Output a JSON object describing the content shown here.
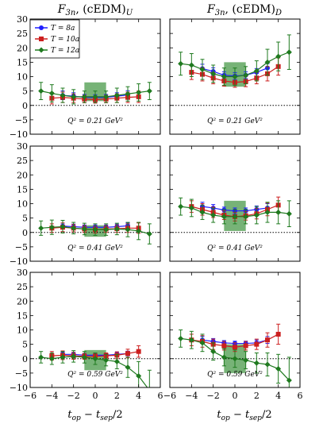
{
  "chart_data": {
    "type": "scatter",
    "column_titles": [
      "F3n, (cEDM)U",
      "F3n, (cEDM)D"
    ],
    "column_title_parts": [
      {
        "main": "F",
        "sub": "3n",
        "rest": ", (cEDM)",
        "sub2": "U"
      },
      {
        "main": "F",
        "sub": "3n",
        "rest": ", (cEDM)",
        "sub2": "D"
      }
    ],
    "xlabel": "t_op − t_sep/2",
    "xlabel_parts": {
      "a": "t",
      "a_sub": "op",
      "mid": " − t",
      "b_sub": "sep",
      "end": "/2"
    },
    "xlim": [
      -6,
      6
    ],
    "ylim": [
      -10,
      30
    ],
    "xticks": [
      "−6",
      "−4",
      "−2",
      "0",
      "2",
      "4",
      "6"
    ],
    "xtick_values": [
      -6,
      -4,
      -2,
      0,
      2,
      4,
      6
    ],
    "yticks": [
      "−10",
      "−5",
      "0",
      "5",
      "10",
      "15",
      "20",
      "25",
      "30"
    ],
    "ytick_values": [
      -10,
      -5,
      0,
      5,
      10,
      15,
      20,
      25,
      30
    ],
    "q2_labels": [
      "Q² = 0.21 GeV²",
      "Q² = 0.41 GeV²",
      "Q² = 0.59 GeV²"
    ],
    "legend": {
      "placement": "top-left",
      "entries": [
        "T = 8a",
        "T = 10a",
        "T = 12a"
      ]
    },
    "series_colors": [
      "#1f1fff",
      "#cc1f1f",
      "#1f7a1f"
    ],
    "band_color": "#2e8b2e",
    "panels": [
      {
        "row": 0,
        "col": 0,
        "band": {
          "x": [
            -1,
            1
          ],
          "y": [
            1.5,
            8.0
          ]
        },
        "series": [
          {
            "x": [
              -3,
              -2,
              -1,
              0,
              1,
              2,
              3
            ],
            "y": [
              3.5,
              3.2,
              2.8,
              2.7,
              2.8,
              3.2,
              3.6
            ],
            "err": [
              1.5,
              1.2,
              1.0,
              1.0,
              1.0,
              1.2,
              1.5
            ]
          },
          {
            "x": [
              -4,
              -3,
              -2,
              -1,
              0,
              1,
              2,
              3,
              4
            ],
            "y": [
              2.5,
              2.8,
              2.5,
              2.2,
              2.0,
              2.2,
              2.5,
              2.8,
              3.0
            ],
            "err": [
              2.0,
              1.8,
              1.5,
              1.3,
              1.2,
              1.3,
              1.5,
              1.8,
              2.0
            ]
          },
          {
            "x": [
              -5,
              -4,
              -3,
              -2,
              -1,
              0,
              1,
              2,
              3,
              4,
              5
            ],
            "y": [
              5.0,
              4.2,
              3.5,
              3.0,
              3.0,
              3.0,
              3.0,
              3.5,
              4.0,
              4.5,
              5.0
            ],
            "err": [
              3.0,
              3.0,
              2.5,
              2.5,
              2.0,
              2.0,
              2.0,
              2.5,
              2.5,
              3.0,
              3.0
            ]
          }
        ]
      },
      {
        "row": 0,
        "col": 1,
        "band": {
          "x": [
            -1,
            1
          ],
          "y": [
            6.5,
            15.0
          ]
        },
        "series": [
          {
            "x": [
              -3,
              -2,
              -1,
              0,
              1,
              2,
              3
            ],
            "y": [
              12.8,
              11.8,
              10.5,
              10.2,
              10.5,
              11.5,
              13.0
            ],
            "err": [
              1.5,
              1.3,
              1.2,
              1.2,
              1.2,
              1.3,
              1.5
            ]
          },
          {
            "x": [
              -4,
              -3,
              -2,
              -1,
              0,
              1,
              2,
              3,
              4
            ],
            "y": [
              11.5,
              10.8,
              9.5,
              8.5,
              8.0,
              8.3,
              9.5,
              11.0,
              13.5
            ],
            "err": [
              2.5,
              2.3,
              2.0,
              1.8,
              1.7,
              1.8,
              2.0,
              2.5,
              3.0
            ]
          },
          {
            "x": [
              -5,
              -4,
              -3,
              -2,
              -1,
              0,
              1,
              2,
              3,
              4,
              5
            ],
            "y": [
              14.5,
              14.0,
              12.5,
              11.0,
              10.0,
              10.0,
              10.5,
              12.0,
              15.0,
              17.0,
              18.5
            ],
            "err": [
              4.0,
              4.0,
              3.5,
              3.0,
              3.0,
              3.0,
              3.0,
              3.5,
              4.5,
              5.0,
              6.0
            ]
          }
        ]
      },
      {
        "row": 1,
        "col": 0,
        "band": {
          "x": [
            -1,
            1
          ],
          "y": [
            -1.5,
            2.5
          ]
        },
        "series": [
          {
            "x": [
              -3,
              -2,
              -1,
              0,
              1,
              2,
              3
            ],
            "y": [
              2.2,
              2.0,
              1.8,
              1.8,
              1.8,
              2.0,
              2.3
            ],
            "err": [
              1.0,
              0.9,
              0.8,
              0.8,
              0.8,
              0.9,
              1.0
            ]
          },
          {
            "x": [
              -4,
              -3,
              -2,
              -1,
              0,
              1,
              2,
              3,
              4
            ],
            "y": [
              1.5,
              1.8,
              1.5,
              1.2,
              1.0,
              1.2,
              1.3,
              1.5,
              1.5
            ],
            "err": [
              1.5,
              1.5,
              1.3,
              1.2,
              1.2,
              1.2,
              1.3,
              1.5,
              1.8
            ]
          },
          {
            "x": [
              -5,
              -4,
              -3,
              -2,
              -1,
              0,
              1,
              2,
              3,
              4,
              5
            ],
            "y": [
              1.5,
              1.8,
              2.0,
              1.5,
              1.2,
              1.0,
              1.0,
              1.2,
              1.0,
              0.5,
              -0.5
            ],
            "err": [
              2.5,
              2.5,
              2.2,
              2.0,
              2.0,
              2.0,
              2.0,
              2.0,
              2.5,
              3.0,
              3.5
            ]
          }
        ]
      },
      {
        "row": 1,
        "col": 1,
        "band": {
          "x": [
            -1,
            1
          ],
          "y": [
            0.5,
            11.0
          ]
        },
        "series": [
          {
            "x": [
              -3,
              -2,
              -1,
              0,
              1,
              2,
              3
            ],
            "y": [
              9.0,
              8.5,
              7.8,
              7.5,
              7.5,
              8.0,
              8.5
            ],
            "err": [
              1.5,
              1.2,
              1.0,
              1.0,
              1.0,
              1.2,
              1.5
            ]
          },
          {
            "x": [
              -4,
              -3,
              -2,
              -1,
              0,
              1,
              2,
              3,
              4
            ],
            "y": [
              9.0,
              8.0,
              7.0,
              6.0,
              5.5,
              5.8,
              6.5,
              8.0,
              9.5
            ],
            "err": [
              2.0,
              2.0,
              1.8,
              1.5,
              1.5,
              1.5,
              1.8,
              2.2,
              2.8
            ]
          },
          {
            "x": [
              -5,
              -4,
              -3,
              -2,
              -1,
              0,
              1,
              2,
              3,
              4,
              5
            ],
            "y": [
              9.0,
              8.5,
              7.0,
              6.0,
              5.5,
              5.5,
              5.5,
              6.0,
              7.0,
              7.0,
              6.5
            ],
            "err": [
              3.0,
              3.0,
              2.5,
              2.5,
              2.5,
              2.5,
              2.5,
              3.0,
              3.5,
              4.0,
              4.5
            ]
          }
        ]
      },
      {
        "row": 2,
        "col": 0,
        "band": {
          "x": [
            -1,
            1
          ],
          "y": [
            -4.0,
            3.0
          ]
        },
        "series": [
          {
            "x": [
              -3,
              -2,
              -1,
              0,
              1,
              2,
              3
            ],
            "y": [
              1.5,
              1.5,
              1.2,
              1.2,
              1.2,
              1.5,
              1.8
            ],
            "err": [
              0.8,
              0.7,
              0.6,
              0.6,
              0.6,
              0.7,
              0.8
            ]
          },
          {
            "x": [
              -4,
              -3,
              -2,
              -1,
              0,
              1,
              2,
              3,
              4
            ],
            "y": [
              1.0,
              1.2,
              1.0,
              0.8,
              0.8,
              1.0,
              1.2,
              1.8,
              2.5
            ],
            "err": [
              1.5,
              1.5,
              1.2,
              1.0,
              1.0,
              1.0,
              1.2,
              1.5,
              2.0
            ]
          },
          {
            "x": [
              -5,
              -4,
              -3,
              -2,
              -1,
              0,
              1,
              2,
              3,
              4,
              5
            ],
            "y": [
              0.5,
              0.0,
              0.5,
              0.8,
              0.5,
              0.0,
              -0.5,
              -1.0,
              -3.0,
              -6.0,
              -11.0
            ],
            "err": [
              2.0,
              2.0,
              2.0,
              2.0,
              2.0,
              2.0,
              2.0,
              2.5,
              3.5,
              5.0,
              7.0
            ]
          }
        ]
      },
      {
        "row": 2,
        "col": 1,
        "band": {
          "x": [
            -1,
            1
          ],
          "y": [
            -5.0,
            5.0
          ]
        },
        "series": [
          {
            "x": [
              -3,
              -2,
              -1,
              0,
              1,
              2,
              3
            ],
            "y": [
              6.5,
              6.0,
              5.5,
              5.3,
              5.3,
              5.5,
              6.5
            ],
            "err": [
              1.2,
              1.0,
              0.8,
              0.8,
              0.8,
              1.0,
              1.2
            ]
          },
          {
            "x": [
              -4,
              -3,
              -2,
              -1,
              0,
              1,
              2,
              3,
              4
            ],
            "y": [
              6.5,
              6.0,
              5.0,
              4.5,
              4.0,
              4.5,
              5.0,
              6.5,
              8.5
            ],
            "err": [
              2.0,
              2.0,
              1.8,
              1.5,
              1.5,
              1.5,
              1.8,
              2.5,
              3.5
            ]
          },
          {
            "x": [
              -5,
              -4,
              -3,
              -2,
              -1,
              0,
              1,
              2,
              3,
              4,
              5
            ],
            "y": [
              7.0,
              6.5,
              5.5,
              2.5,
              0.5,
              0.0,
              -0.5,
              -1.5,
              -2.0,
              -3.5,
              -7.5
            ],
            "err": [
              3.0,
              3.0,
              3.0,
              3.0,
              3.0,
              3.0,
              3.0,
              3.5,
              4.0,
              5.0,
              8.0
            ]
          }
        ]
      }
    ]
  }
}
